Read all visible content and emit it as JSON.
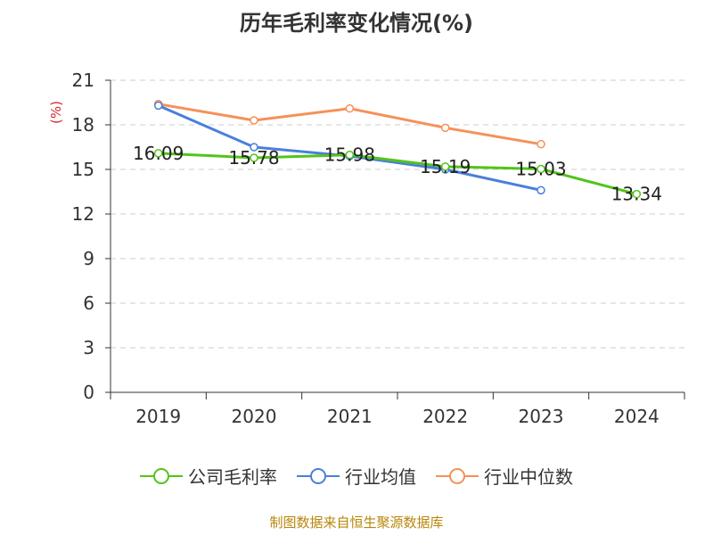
{
  "chart_data": {
    "type": "line",
    "title": "历年毛利率变化情况(%)",
    "ylabel": "(%)",
    "xlabel": "",
    "categories": [
      "2019",
      "2020",
      "2021",
      "2022",
      "2023",
      "2024"
    ],
    "ylim": [
      0,
      21
    ],
    "yticks": [
      0,
      3,
      6,
      9,
      12,
      15,
      18,
      21
    ],
    "grid": true,
    "legend_position": "bottom",
    "series": [
      {
        "name": "公司毛利率",
        "color": "#52c41a",
        "values": [
          16.09,
          15.78,
          15.98,
          15.19,
          15.03,
          13.34
        ],
        "show_labels": true
      },
      {
        "name": "行业均值",
        "color": "#4a7fdb",
        "values": [
          19.3,
          16.5,
          15.9,
          15.0,
          13.6,
          null
        ],
        "show_labels": false
      },
      {
        "name": "行业中位数",
        "color": "#f5915a",
        "values": [
          19.4,
          18.3,
          19.1,
          17.8,
          16.7,
          null
        ],
        "show_labels": false
      }
    ]
  },
  "source": "制图数据来自恒生聚源数据库"
}
